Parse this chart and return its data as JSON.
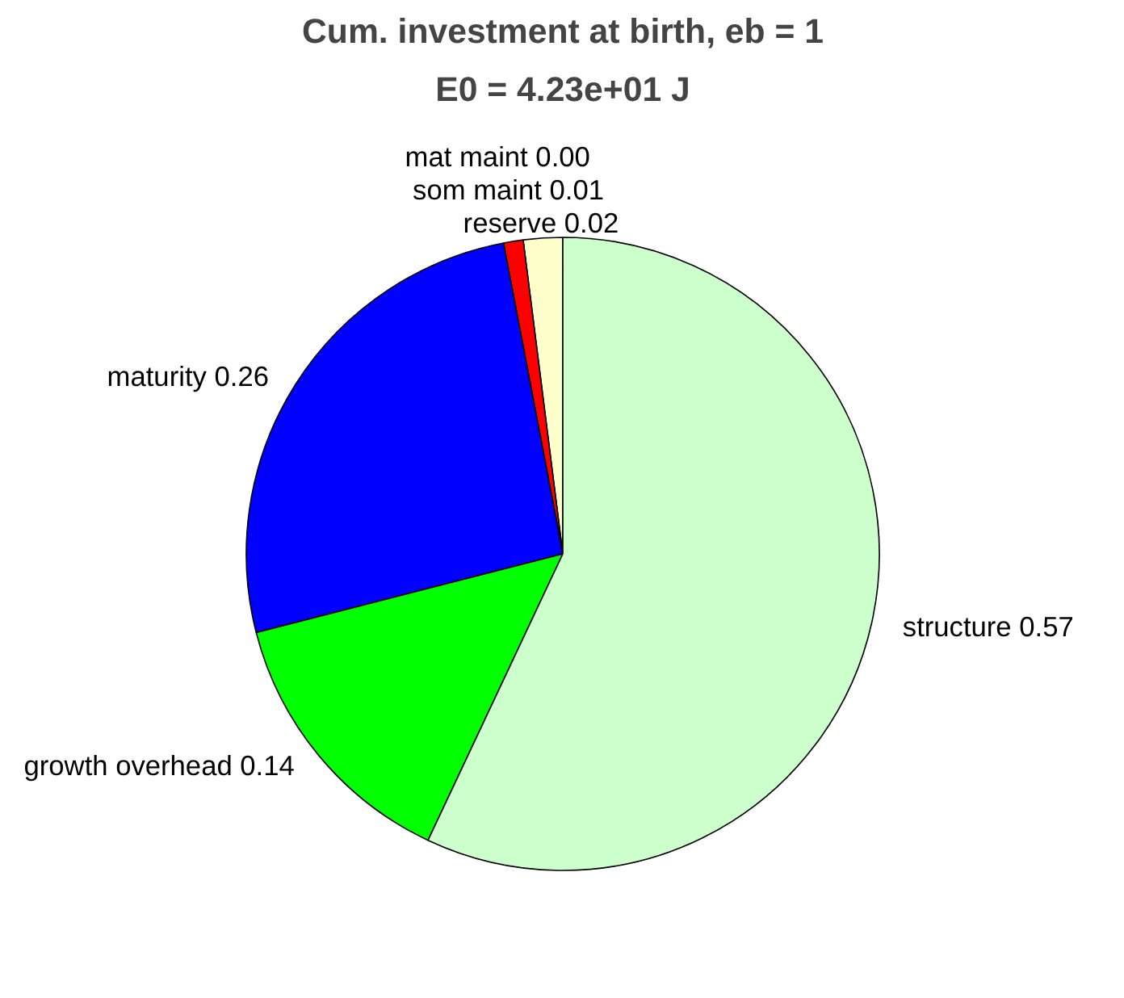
{
  "chart_data": {
    "type": "pie",
    "title": "Cum. investment at birth, eb = 1",
    "subtitle": "E0 = 4.23e+01 J",
    "categories": [
      "reserve",
      "som maint",
      "mat maint",
      "maturity",
      "growth overhead",
      "structure"
    ],
    "values": [
      0.02,
      0.01,
      0.0,
      0.26,
      0.14,
      0.57
    ],
    "value_labels": [
      "0.02",
      "0.01",
      "0.00",
      "0.26",
      "0.14",
      "0.57"
    ],
    "colors": [
      "#ffffcc",
      "#ff0000",
      "#800000",
      "#0000ff",
      "#00ff00",
      "#ccffcc"
    ],
    "legend": false
  }
}
